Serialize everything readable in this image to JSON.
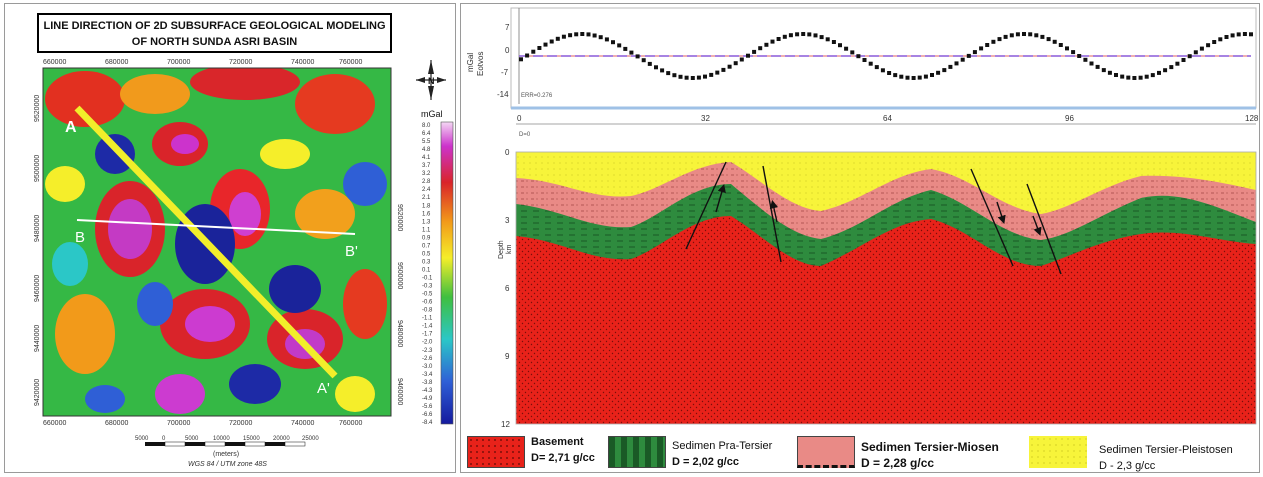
{
  "left_map": {
    "title_line1": "LINE DIRECTION OF 2D SUBSURFACE GEOLOGICAL MODELING",
    "title_line2": "OF NORTH SUNDA ASRI BASIN",
    "x_ticks": [
      "660000",
      "680000",
      "700000",
      "720000",
      "740000",
      "760000"
    ],
    "y_ticks": [
      "9520000",
      "9500000",
      "9480000",
      "9460000",
      "9440000",
      "9420000"
    ],
    "line_labels": {
      "A": "A",
      "A_prime": "A'",
      "B": "B",
      "B_prime": "B'"
    },
    "north_label": "N",
    "colorbar_unit": "mGal",
    "colorbar_values": [
      "8.0",
      "6.4",
      "5.5",
      "4.8",
      "4.1",
      "3.7",
      "3.2",
      "2.8",
      "2.4",
      "2.1",
      "1.8",
      "1.6",
      "1.3",
      "1.1",
      "0.9",
      "0.7",
      "0.5",
      "0.3",
      "0.1",
      "-0.1",
      "-0.3",
      "-0.5",
      "-0.6",
      "-0.8",
      "-1.1",
      "-1.4",
      "-1.7",
      "-2.0",
      "-2.3",
      "-2.6",
      "-3.0",
      "-3.4",
      "-3.8",
      "-4.3",
      "-4.9",
      "-5.6",
      "-6.6",
      "-8.4"
    ],
    "scalebar_ticks": [
      "5000",
      "0",
      "5000",
      "10000",
      "15000",
      "20000",
      "25000"
    ],
    "scalebar_unit": "(meters)",
    "projection": "WGS 84 / UTM zone 48S",
    "colors": {
      "line_AA": "#f2ee2a",
      "line_BB": "#ffffff"
    }
  },
  "gravity_panel": {
    "ylabel_1": "mGal",
    "ylabel_2": "Eotvos",
    "y_ticks": [
      "7",
      "0",
      "-7",
      "-14"
    ],
    "err_label": "ERR=0.276"
  },
  "model_panel": {
    "x_ticks": [
      "0",
      "32",
      "64",
      "96",
      "128"
    ],
    "depth_ticks": [
      "0",
      "3",
      "6",
      "9",
      "12"
    ],
    "d0_label": "D=0",
    "ylabel_1": "Depth",
    "ylabel_2": "km"
  },
  "legend": [
    {
      "name": "Basement",
      "density": "D= 2,71 g/cc",
      "color": "#e8221a"
    },
    {
      "name": "Sedimen Pra-Tersier",
      "density": "D = 2,02 g/cc",
      "color": "#2e8b3e"
    },
    {
      "name": "Sedimen Tersier-Miosen",
      "density": "D = 2,28 g/cc",
      "color": "#e98a86"
    },
    {
      "name": "Sedimen Tersier-Pleistosen",
      "density": "D - 2,3 g/cc",
      "color": "#f7f43a"
    }
  ]
}
